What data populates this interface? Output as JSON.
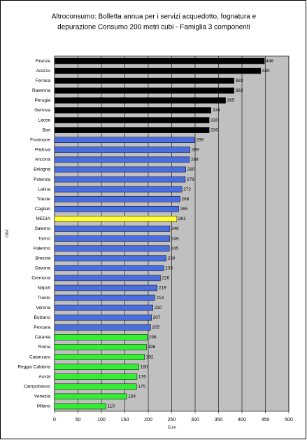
{
  "chart_data": {
    "type": "barh",
    "title": [
      "Altroconsumo: Bolletta annua per i servizi acquedotto, fognatura e",
      "depurazione  Consumo 200 metri cubi - Famiglia 3 componenti"
    ],
    "x_label": "Euro",
    "y_label": "Citta'",
    "categories": [
      "Firenze",
      "Arezzo",
      "Ferrara",
      "Ravenna",
      "Perugia",
      "Genova",
      "Lecce",
      "Bari",
      "Frosinone",
      "Padova",
      "Ancona",
      "Bologna",
      "Potenza",
      "Latina",
      "Trieste",
      "Cagliari",
      "MEDIA",
      "Salerno",
      "Torino",
      "Palermo",
      "Brescia",
      "Savona",
      "Cremona",
      "Napoli",
      "Trento",
      "Verona",
      "Bolzano",
      "Pescara",
      "Catania",
      "Roma",
      "Catanzaro",
      "Reggio Calabria",
      "Aosta",
      "Campobasso",
      "Venezia",
      "Milano"
    ],
    "values": [
      448,
      440,
      383,
      383,
      365,
      334,
      330,
      330,
      299,
      289,
      288,
      280,
      279,
      272,
      268,
      265,
      261,
      246,
      246,
      245,
      238,
      233,
      226,
      219,
      214,
      210,
      207,
      205,
      198,
      196,
      192,
      180,
      176,
      175,
      154,
      110
    ],
    "colors": [
      "#000000",
      "#000000",
      "#000000",
      "#000000",
      "#000000",
      "#000000",
      "#000000",
      "#000000",
      "#4a6ee0",
      "#4a6ee0",
      "#4a6ee0",
      "#4a6ee0",
      "#4a6ee0",
      "#4a6ee0",
      "#4a6ee0",
      "#4a6ee0",
      "#ffff33",
      "#4a6ee0",
      "#4a6ee0",
      "#4a6ee0",
      "#4a6ee0",
      "#4a6ee0",
      "#4a6ee0",
      "#4a6ee0",
      "#4a6ee0",
      "#4a6ee0",
      "#4a6ee0",
      "#4a6ee0",
      "#33ee33",
      "#33ee33",
      "#33ee33",
      "#33ee33",
      "#33ee33",
      "#33ee33",
      "#33ee33",
      "#33ee33"
    ],
    "xlim": [
      0,
      500
    ],
    "xticks": [
      0,
      50,
      100,
      150,
      200,
      250,
      300,
      350,
      400,
      450,
      500
    ],
    "grid": true
  }
}
